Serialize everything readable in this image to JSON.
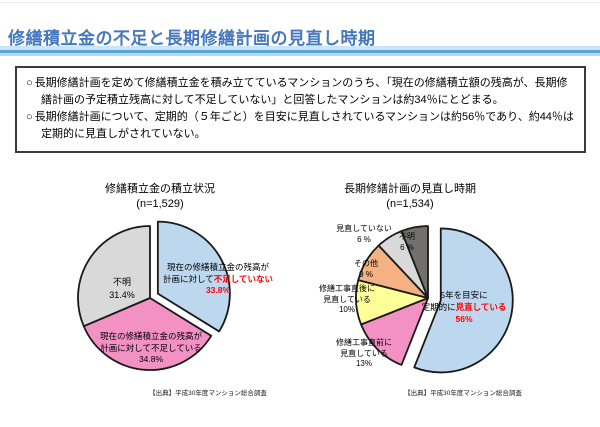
{
  "page": {
    "title": "修繕積立金の不足と長期修繕計画の見直し時期"
  },
  "summary_box": {
    "marker": "○",
    "bullets": [
      "長期修繕計画を定めて修繕積立金を積み立てているマンションのうち、「現在の修繕積立額の残高が、長期修繕計画の予定積立残高に対して不足していない」と回答したマンションは約34％にとどまる。",
      "長期修繕計画について、定期的（５年ごと）を目安に見直しされているマンションは約56％であり、約44％は定期的に見直しがされていない。"
    ]
  },
  "left_chart": {
    "title": "修繕積立金の積立状況",
    "n_label": "(n=1,529)",
    "source": "【出典】平成30年度マンション総合調査",
    "labels": {
      "blue": {
        "l1": "現在の修繕積立金の残高が",
        "l2_black": "計画に対して",
        "l2_red": "不足していない",
        "pct": "33.8%"
      },
      "pink": {
        "l1": "現在の修繕積立金の残高が",
        "l2": "計画に対して不足している",
        "pct": "34.8%"
      },
      "gray": {
        "l1": "不明",
        "pct": "31.4%"
      }
    }
  },
  "right_chart": {
    "title": "長期修繕計画の見直し時期",
    "n_label": "(n=1,534)",
    "source": "【出典】平成30年度マンション総合調査",
    "labels": {
      "blue": {
        "l1": "5年を目安に",
        "l2_black": "定期的に",
        "l2_red": "見直している",
        "pct": "56%"
      },
      "pink": {
        "l1": "修繕工事直前に",
        "l2": "見直している",
        "pct": "13%"
      },
      "yellow": {
        "l1": "修繕工事直後に",
        "l2": "見直している",
        "pct": "10%"
      },
      "orange": {
        "l1": "その他",
        "pct": "9 %"
      },
      "lightgray": {
        "l1": "見直していない",
        "pct": "6 %"
      },
      "darkgray": {
        "l1": "不明",
        "pct": "6 %"
      }
    }
  },
  "chart_data": [
    {
      "type": "pie",
      "title": "修繕積立金の積立状況",
      "n": 1529,
      "categories": [
        "現在の修繕積立金の残高が計画に対して不足していない",
        "現在の修繕積立金の残高が計画に対して不足している",
        "不明"
      ],
      "values": [
        33.8,
        34.8,
        31.4
      ],
      "unit": "%",
      "colors": [
        "#BDD7EE",
        "#F391C4",
        "#D9D9D9"
      ],
      "exploded": [
        true,
        false,
        false
      ],
      "start_angle": "top",
      "direction": "clockwise",
      "legend": "none",
      "source": "【出典】平成30年度マンション総合調査"
    },
    {
      "type": "pie",
      "title": "長期修繕計画の見直し時期",
      "n": 1534,
      "categories": [
        "5年を目安に定期的に見直している",
        "修繕工事直前に見直している",
        "修繕工事直後に見直している",
        "その他",
        "見直していない",
        "不明"
      ],
      "values": [
        56,
        13,
        10,
        9,
        6,
        6
      ],
      "unit": "%",
      "colors": [
        "#BDD7EE",
        "#F391C4",
        "#FFFF99",
        "#F4B183",
        "#D9D9D9",
        "#757070"
      ],
      "exploded": [
        true,
        false,
        false,
        false,
        false,
        false
      ],
      "start_angle": "top",
      "direction": "clockwise",
      "legend": "none",
      "source": "【出典】平成30年度マンション総合調査"
    }
  ]
}
